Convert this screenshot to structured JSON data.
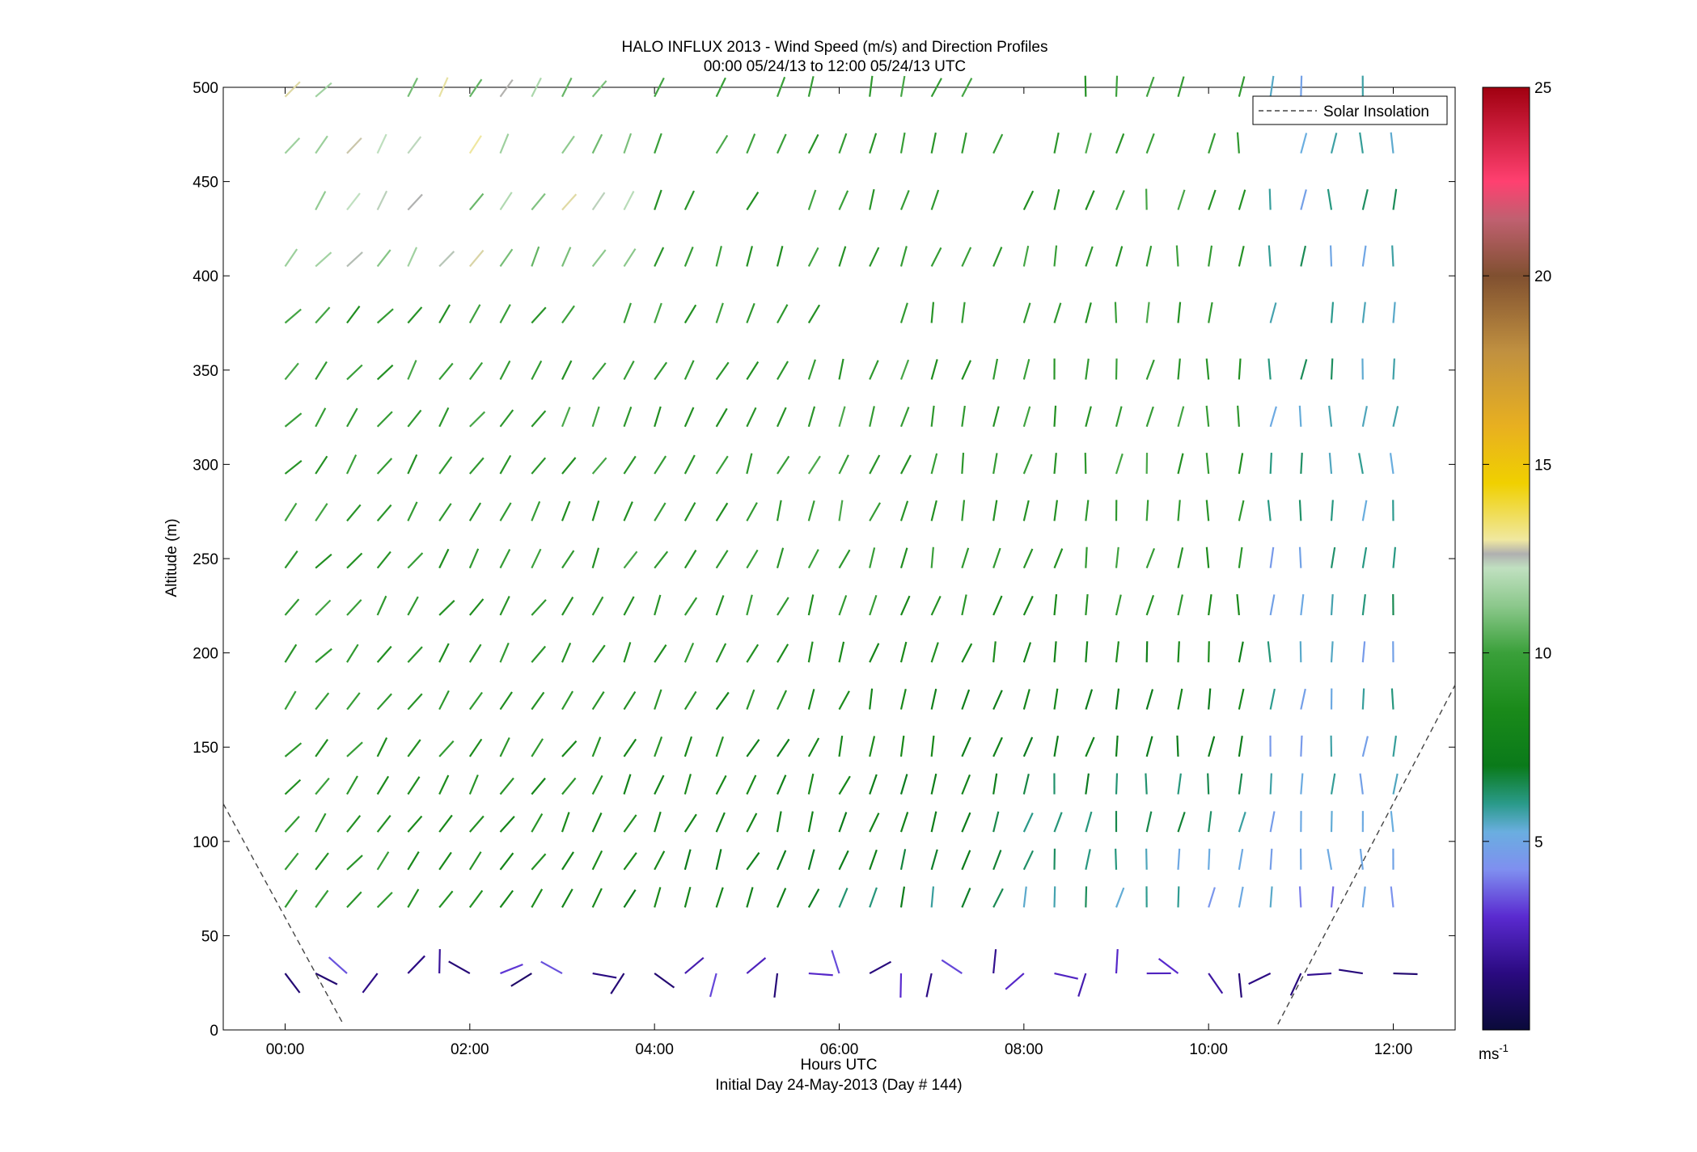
{
  "chart_data": {
    "type": "quiver",
    "title": "HALO INFLUX 2013 - Wind Speed (m/s) and Direction Profiles",
    "subtitle": "00:00 05/24/13 to 12:00 05/24/13  UTC",
    "xlabel": "Hours UTC",
    "xlabel2": "Initial Day 24-May-2013 (Day # 144)",
    "ylabel": "Altitude (m)",
    "xlim": [
      -0.67,
      12.67
    ],
    "ylim": [
      0,
      500
    ],
    "x_ticks": [
      0,
      2,
      4,
      6,
      8,
      10,
      12
    ],
    "x_tick_labels": [
      "00:00",
      "02:00",
      "04:00",
      "06:00",
      "08:00",
      "10:00",
      "12:00"
    ],
    "y_ticks": [
      0,
      50,
      100,
      150,
      200,
      250,
      300,
      350,
      400,
      450,
      500
    ],
    "y_tick_labels": [
      "0",
      "50",
      "100",
      "150",
      "200",
      "250",
      "300",
      "350",
      "400",
      "450",
      "500"
    ],
    "legend": {
      "entries": [
        "Solar Insolation"
      ],
      "placement": "top-right"
    },
    "colorbar": {
      "range": [
        0,
        25
      ],
      "ticks": [
        5,
        10,
        15,
        20,
        25
      ],
      "tick_labels": [
        "5",
        "10",
        "15",
        "20",
        "25"
      ],
      "unit_label": "ms",
      "unit_exponent": "-1"
    },
    "solar_insolation": [
      {
        "x": [
          -0.67,
          0.63
        ],
        "y": [
          120,
          3
        ]
      },
      {
        "x": [
          10.75,
          12.67
        ],
        "y": [
          3,
          183
        ]
      }
    ],
    "wind_profiles": {
      "levels_m": [
        30,
        65,
        85,
        105,
        125,
        145,
        170,
        195,
        220,
        245,
        270,
        295,
        320,
        345,
        375,
        405,
        435,
        465,
        495
      ],
      "times_h": [
        0,
        0.33,
        0.67,
        1.0,
        1.33,
        1.67,
        2.0,
        2.33,
        2.67,
        3.0,
        3.33,
        3.67,
        4.0,
        4.33,
        4.67,
        5.0,
        5.33,
        5.67,
        6.0,
        6.33,
        6.67,
        7.0,
        7.33,
        7.67,
        8.0,
        8.33,
        8.67,
        9.0,
        9.33,
        9.67,
        10.0,
        10.33,
        10.67,
        11.0,
        11.33,
        11.67,
        12.0
      ],
      "note": "Wind barbs drawn at altitude/time grid; orientation encodes direction, color encodes speed (0-25 m/s)."
    }
  }
}
